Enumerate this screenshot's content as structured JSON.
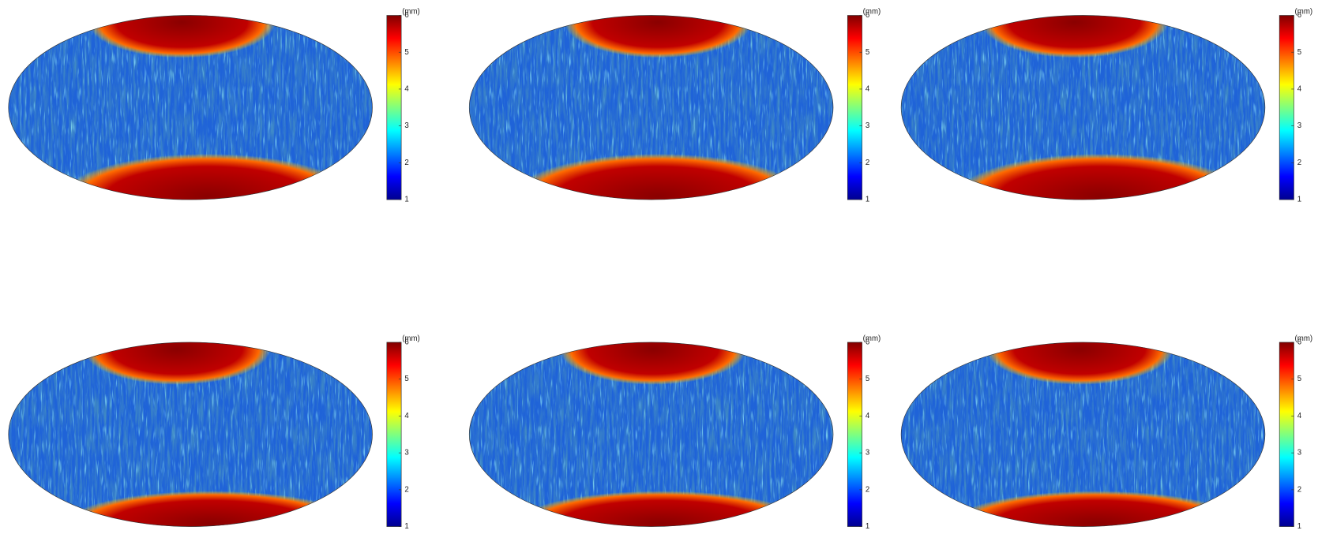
{
  "chart_data": [
    {
      "type": "map",
      "colorbar": {
        "label": "(mm)",
        "lim": [
          1,
          6
        ],
        "ticks": [
          1,
          2,
          3,
          4,
          5,
          6
        ]
      }
    },
    {
      "type": "map",
      "colorbar": {
        "label": "(mm)",
        "lim": [
          1,
          6
        ],
        "ticks": [
          1,
          2,
          3,
          4,
          5,
          6
        ]
      }
    },
    {
      "type": "map",
      "colorbar": {
        "label": "(mm)",
        "lim": [
          1,
          6
        ],
        "ticks": [
          1,
          2,
          3,
          4,
          5,
          6
        ]
      }
    },
    {
      "type": "map",
      "colorbar": {
        "label": "(mm)",
        "lim": [
          1,
          6
        ],
        "ticks": [
          1,
          2,
          3,
          4,
          5,
          6
        ]
      }
    },
    {
      "type": "map",
      "colorbar": {
        "label": "(mm)",
        "lim": [
          1,
          6
        ],
        "ticks": [
          1,
          2,
          3,
          4,
          5,
          6
        ]
      }
    },
    {
      "type": "map",
      "colorbar": {
        "label": "(mm)",
        "lim": [
          1,
          6
        ],
        "ticks": [
          1,
          2,
          3,
          4,
          5,
          6
        ]
      }
    }
  ]
}
